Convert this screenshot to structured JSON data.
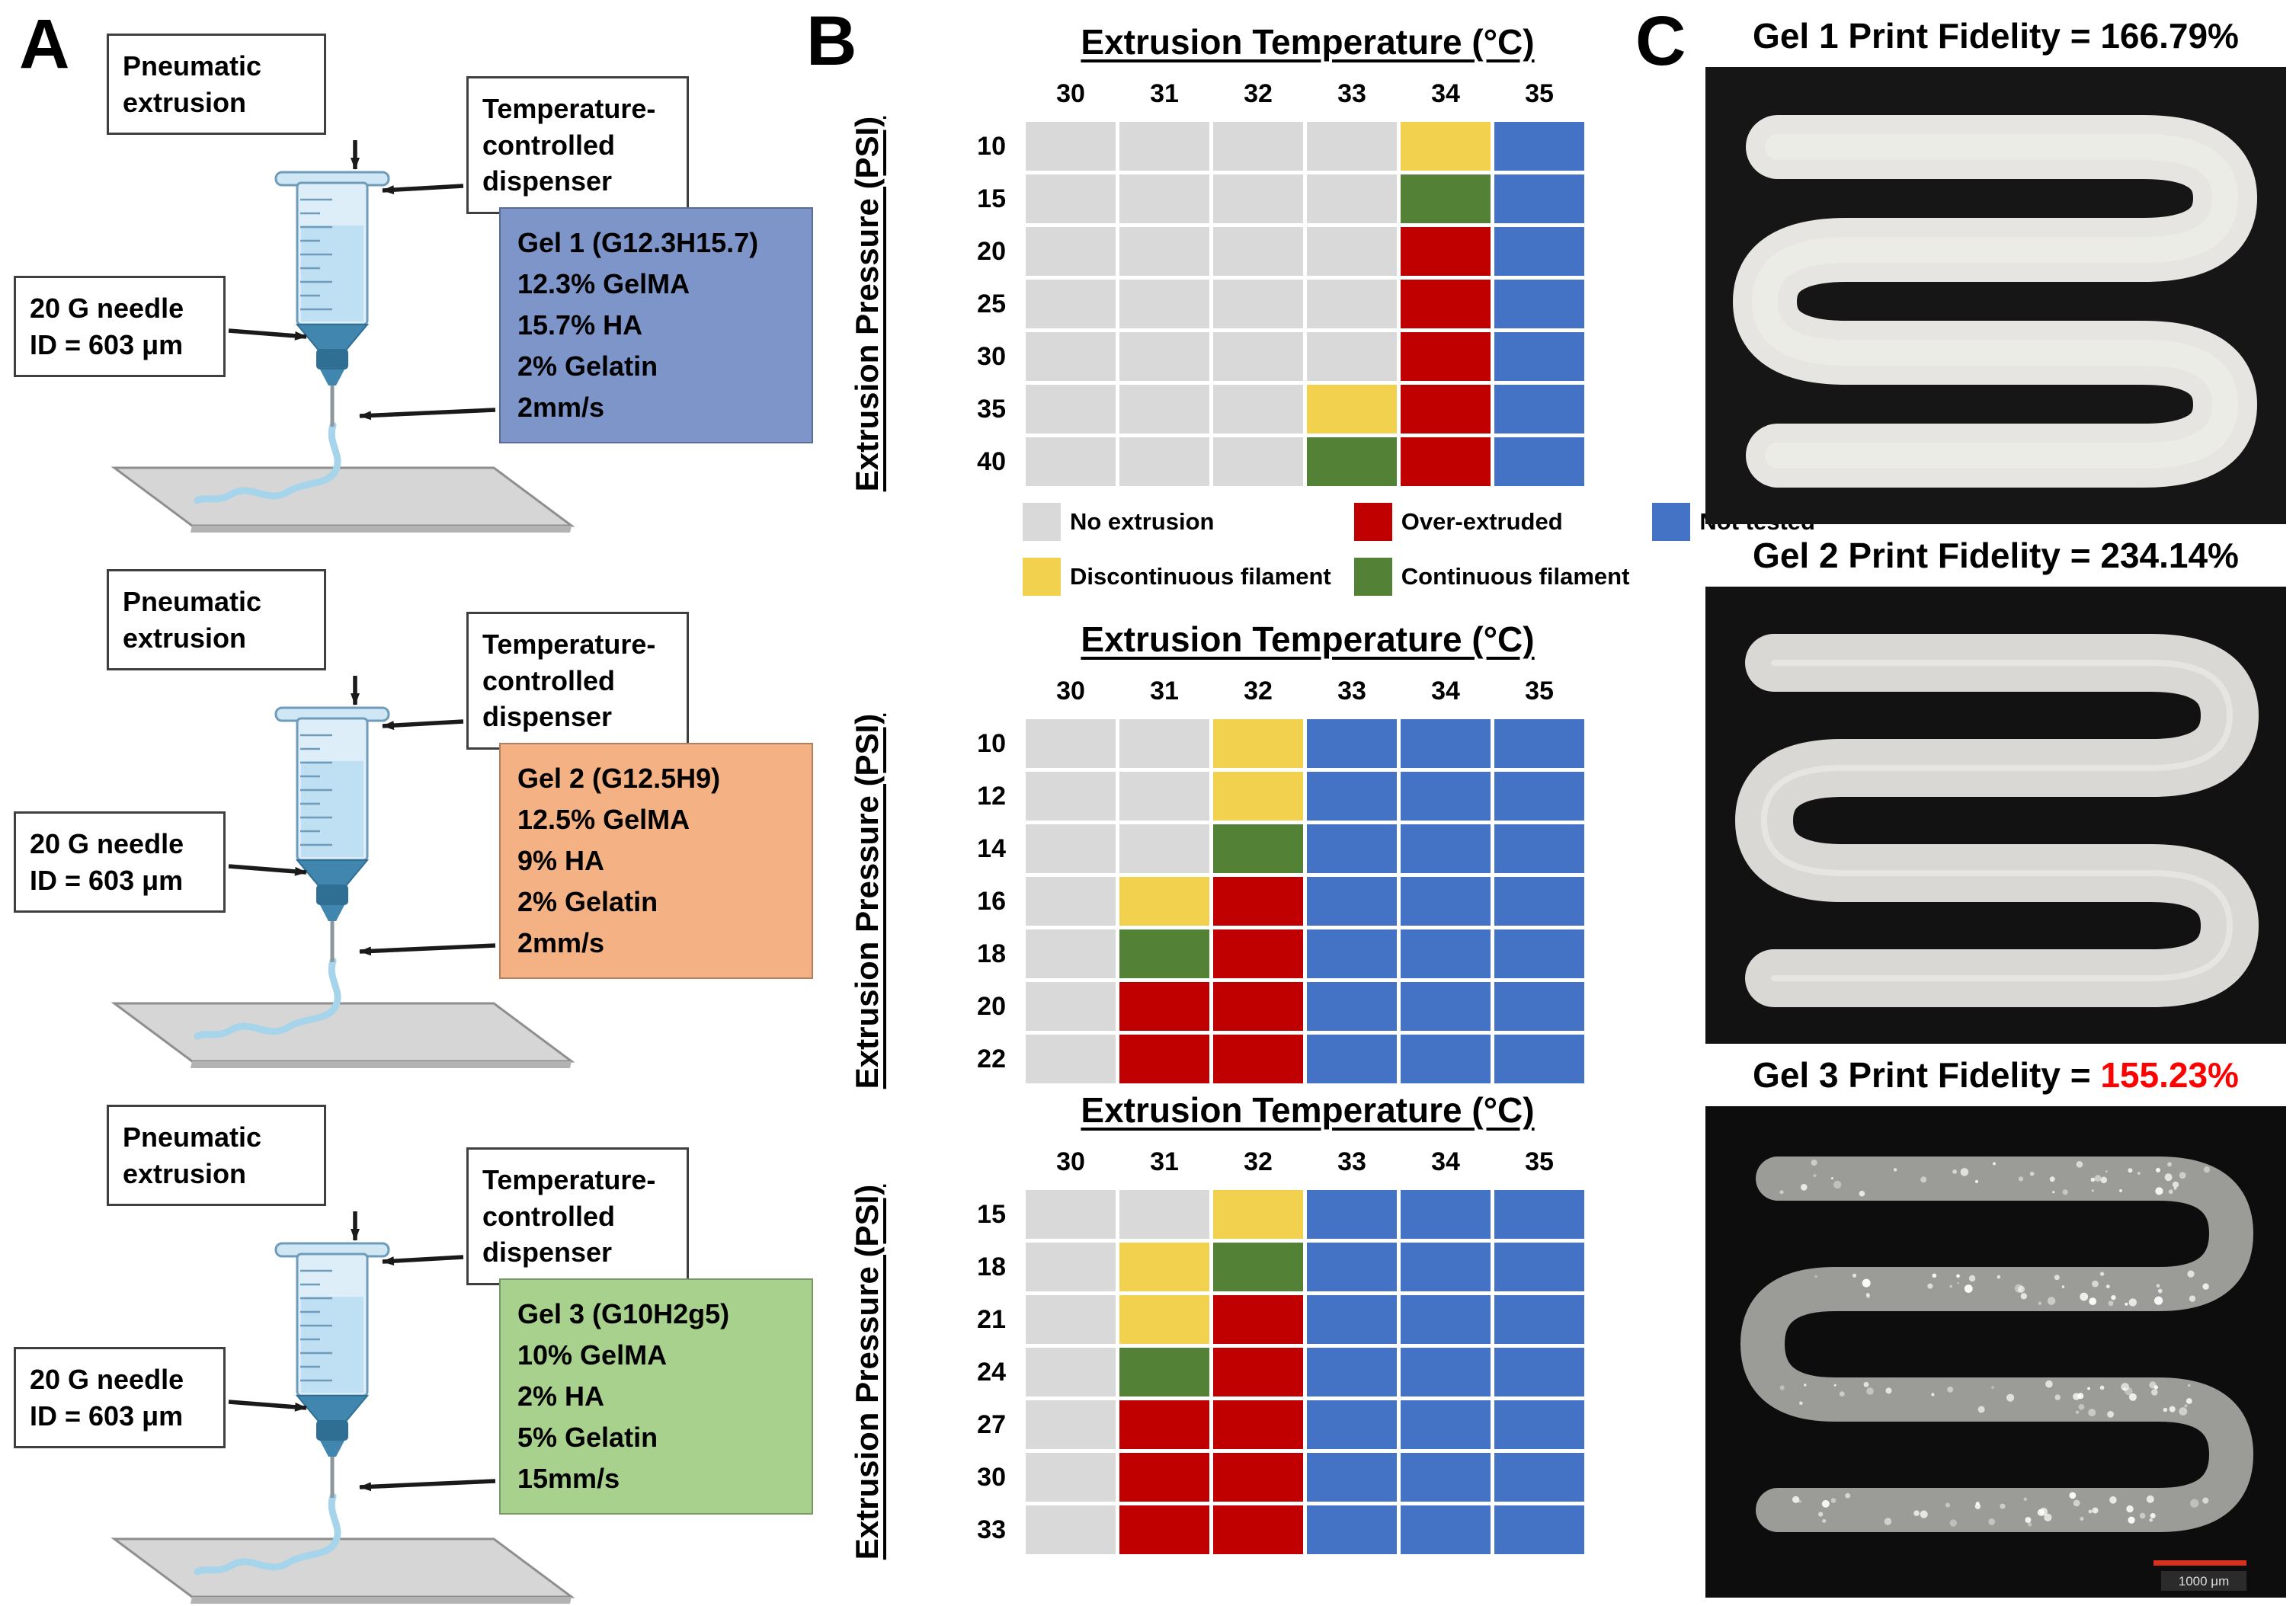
{
  "panels": {
    "a": "A",
    "b": "B",
    "c": "C"
  },
  "colors": {
    "no_extrusion": "#D9D9D9",
    "over_extruded": "#C00000",
    "not_tested": "#4472C4",
    "discontinuous": "#F2D14E",
    "continuous": "#538135"
  },
  "panel_a": {
    "setups": [
      {
        "pneumatic": "Pneumatic extrusion",
        "dispenser": "Temperature-controlled dispenser",
        "needle": "20 G needle\nID = 603 μm",
        "gel_title": "Gel 1 (G12.3H15.7)",
        "gel_lines": [
          "12.3% GelMA",
          "15.7% HA",
          "2% Gelatin",
          "2mm/s"
        ],
        "gel_color": "#7E95C9"
      },
      {
        "pneumatic": "Pneumatic extrusion",
        "dispenser": "Temperature-controlled dispenser",
        "needle": "20 G needle\nID = 603 μm",
        "gel_title": "Gel 2 (G12.5H9)",
        "gel_lines": [
          "12.5% GelMA",
          "9% HA",
          "2% Gelatin",
          "2mm/s"
        ],
        "gel_color": "#F4B183"
      },
      {
        "pneumatic": "Pneumatic extrusion",
        "dispenser": "Temperature-controlled dispenser",
        "needle": "20 G needle\nID = 603 μm",
        "gel_title": "Gel 3 (G10H2g5)",
        "gel_lines": [
          "10% GelMA",
          "2% HA",
          "5% Gelatin",
          "15mm/s"
        ],
        "gel_color": "#A9D18E"
      }
    ]
  },
  "panel_b": {
    "legend": [
      {
        "key": "no_extrusion",
        "label": "No extrusion"
      },
      {
        "key": "over_extruded",
        "label": "Over-extruded"
      },
      {
        "key": "not_tested",
        "label": "Not tested"
      },
      {
        "key": "discontinuous",
        "label": "Discontinuous filament"
      },
      {
        "key": "continuous",
        "label": "Continuous filament"
      }
    ]
  },
  "panel_c": {
    "images": [
      {
        "title": "Gel 1 Print Fidelity = ",
        "value": "166.79%",
        "value_color": "#000000"
      },
      {
        "title": "Gel 2 Print Fidelity = ",
        "value": "234.14%",
        "value_color": "#000000"
      },
      {
        "title": "Gel 3 Print Fidelity = ",
        "value": "155.23%",
        "value_color": "#FF0000"
      }
    ],
    "scale_bar_label": "1000 μm"
  },
  "chart_data": [
    {
      "type": "heatmap",
      "title": "Extrusion Temperature (°C)",
      "xlabel": "Extrusion Temperature (°C)",
      "ylabel": "Extrusion Pressure (PSI)",
      "x": [
        "30",
        "31",
        "32",
        "33",
        "34",
        "35"
      ],
      "y": [
        "10",
        "15",
        "20",
        "25",
        "30",
        "35",
        "40"
      ],
      "legend_position": "below",
      "values": [
        [
          "no_extrusion",
          "no_extrusion",
          "no_extrusion",
          "no_extrusion",
          "discontinuous",
          "not_tested"
        ],
        [
          "no_extrusion",
          "no_extrusion",
          "no_extrusion",
          "no_extrusion",
          "continuous",
          "not_tested"
        ],
        [
          "no_extrusion",
          "no_extrusion",
          "no_extrusion",
          "no_extrusion",
          "over_extruded",
          "not_tested"
        ],
        [
          "no_extrusion",
          "no_extrusion",
          "no_extrusion",
          "no_extrusion",
          "over_extruded",
          "not_tested"
        ],
        [
          "no_extrusion",
          "no_extrusion",
          "no_extrusion",
          "no_extrusion",
          "over_extruded",
          "not_tested"
        ],
        [
          "no_extrusion",
          "no_extrusion",
          "no_extrusion",
          "discontinuous",
          "over_extruded",
          "not_tested"
        ],
        [
          "no_extrusion",
          "no_extrusion",
          "no_extrusion",
          "continuous",
          "over_extruded",
          "not_tested"
        ]
      ]
    },
    {
      "type": "heatmap",
      "title": "Extrusion Temperature (°C)",
      "xlabel": "Extrusion Temperature (°C)",
      "ylabel": "Extrusion Pressure (PSI)",
      "x": [
        "30",
        "31",
        "32",
        "33",
        "34",
        "35"
      ],
      "y": [
        "10",
        "12",
        "14",
        "16",
        "18",
        "20",
        "22"
      ],
      "values": [
        [
          "no_extrusion",
          "no_extrusion",
          "discontinuous",
          "not_tested",
          "not_tested",
          "not_tested"
        ],
        [
          "no_extrusion",
          "no_extrusion",
          "discontinuous",
          "not_tested",
          "not_tested",
          "not_tested"
        ],
        [
          "no_extrusion",
          "no_extrusion",
          "continuous",
          "not_tested",
          "not_tested",
          "not_tested"
        ],
        [
          "no_extrusion",
          "discontinuous",
          "over_extruded",
          "not_tested",
          "not_tested",
          "not_tested"
        ],
        [
          "no_extrusion",
          "continuous",
          "over_extruded",
          "not_tested",
          "not_tested",
          "not_tested"
        ],
        [
          "no_extrusion",
          "over_extruded",
          "over_extruded",
          "not_tested",
          "not_tested",
          "not_tested"
        ],
        [
          "no_extrusion",
          "over_extruded",
          "over_extruded",
          "not_tested",
          "not_tested",
          "not_tested"
        ]
      ]
    },
    {
      "type": "heatmap",
      "title": "Extrusion Temperature (°C)",
      "xlabel": "Extrusion Temperature (°C)",
      "ylabel": "Extrusion Pressure (PSI)",
      "x": [
        "30",
        "31",
        "32",
        "33",
        "34",
        "35"
      ],
      "y": [
        "15",
        "18",
        "21",
        "24",
        "27",
        "30",
        "33"
      ],
      "values": [
        [
          "no_extrusion",
          "no_extrusion",
          "discontinuous",
          "not_tested",
          "not_tested",
          "not_tested"
        ],
        [
          "no_extrusion",
          "discontinuous",
          "continuous",
          "not_tested",
          "not_tested",
          "not_tested"
        ],
        [
          "no_extrusion",
          "discontinuous",
          "over_extruded",
          "not_tested",
          "not_tested",
          "not_tested"
        ],
        [
          "no_extrusion",
          "continuous",
          "over_extruded",
          "not_tested",
          "not_tested",
          "not_tested"
        ],
        [
          "no_extrusion",
          "over_extruded",
          "over_extruded",
          "not_tested",
          "not_tested",
          "not_tested"
        ],
        [
          "no_extrusion",
          "over_extruded",
          "over_extruded",
          "not_tested",
          "not_tested",
          "not_tested"
        ],
        [
          "no_extrusion",
          "over_extruded",
          "over_extruded",
          "not_tested",
          "not_tested",
          "not_tested"
        ]
      ]
    }
  ]
}
